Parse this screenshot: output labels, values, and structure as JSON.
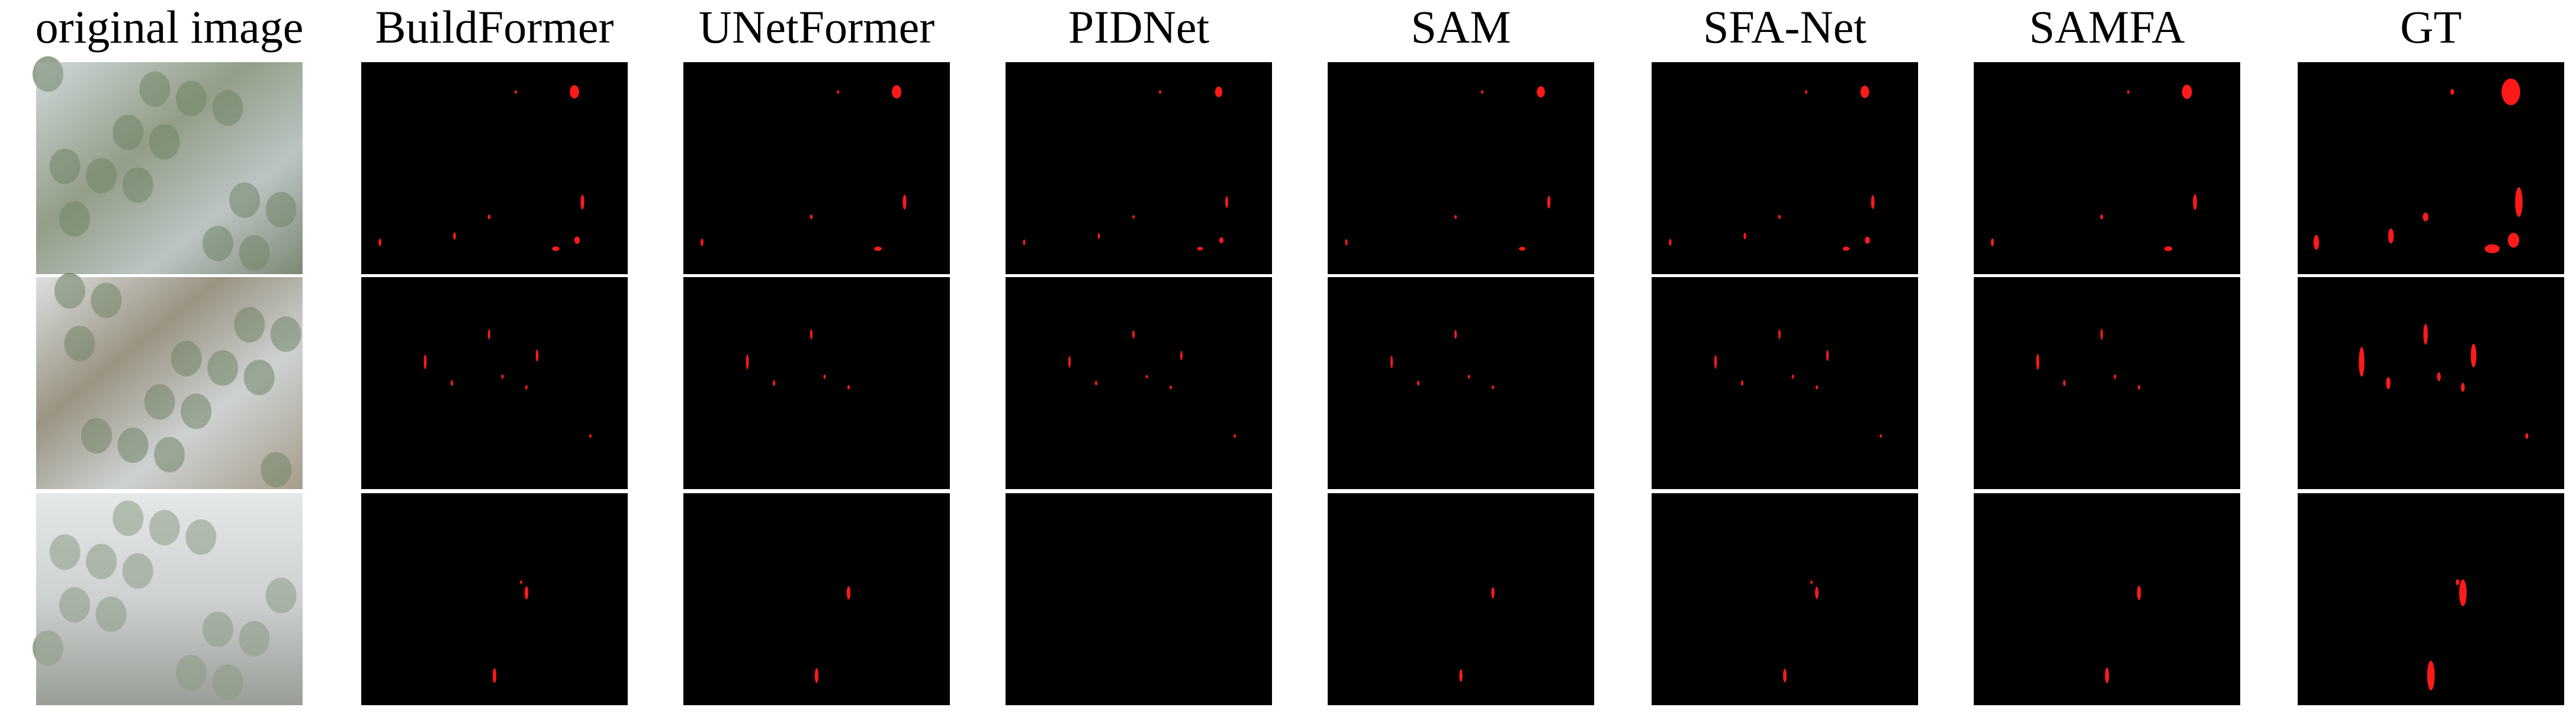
{
  "columns": [
    "original image",
    "BuildFormer",
    "UNetFormer",
    "PIDNet",
    "SAM",
    "SFA-Net",
    "SAMFA",
    "GT"
  ]
}
